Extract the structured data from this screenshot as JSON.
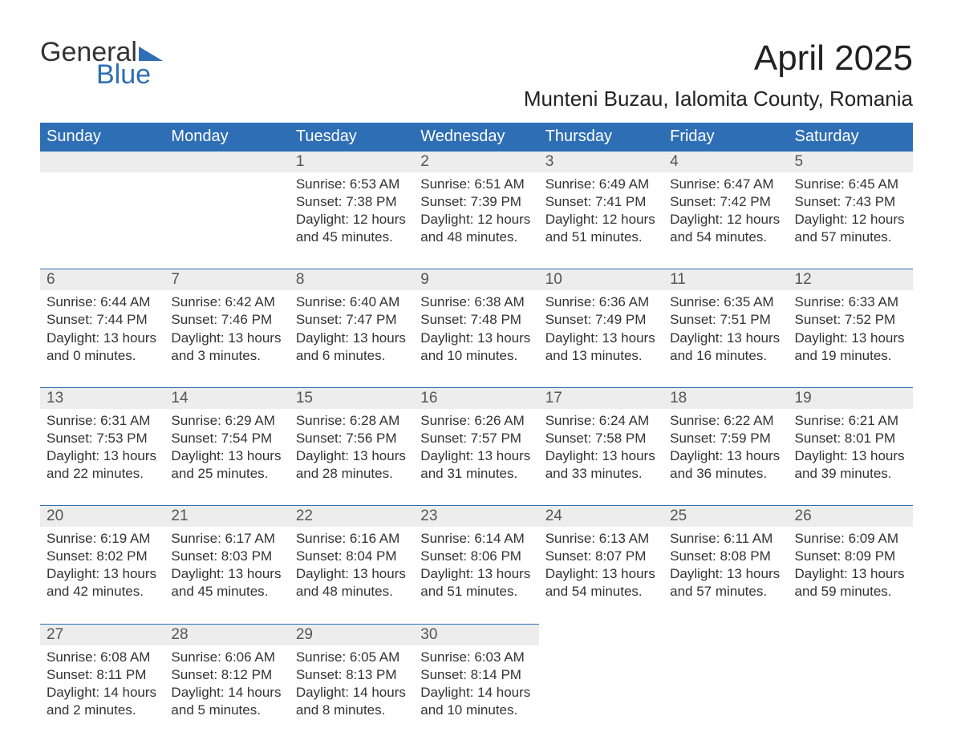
{
  "brand": {
    "word1": "General",
    "word2": "Blue",
    "triangle_color": "#2e6eb5"
  },
  "title": "April 2025",
  "location": "Munteni Buzau, Ialomita County, Romania",
  "colors": {
    "header_bg": "#2e6eb5",
    "header_text": "#ffffff",
    "date_bg": "#ededed",
    "date_border": "#2e6eb5",
    "body_text": "#333333",
    "page_bg": "#ffffff"
  },
  "typography": {
    "title_fontsize": 44,
    "location_fontsize": 26,
    "header_fontsize": 20,
    "date_fontsize": 19,
    "cell_fontsize": 17
  },
  "days": [
    "Sunday",
    "Monday",
    "Tuesday",
    "Wednesday",
    "Thursday",
    "Friday",
    "Saturday"
  ],
  "weeks": [
    [
      null,
      null,
      {
        "d": "1",
        "sr": "Sunrise: 6:53 AM",
        "ss": "Sunset: 7:38 PM",
        "dl1": "Daylight: 12 hours",
        "dl2": "and 45 minutes."
      },
      {
        "d": "2",
        "sr": "Sunrise: 6:51 AM",
        "ss": "Sunset: 7:39 PM",
        "dl1": "Daylight: 12 hours",
        "dl2": "and 48 minutes."
      },
      {
        "d": "3",
        "sr": "Sunrise: 6:49 AM",
        "ss": "Sunset: 7:41 PM",
        "dl1": "Daylight: 12 hours",
        "dl2": "and 51 minutes."
      },
      {
        "d": "4",
        "sr": "Sunrise: 6:47 AM",
        "ss": "Sunset: 7:42 PM",
        "dl1": "Daylight: 12 hours",
        "dl2": "and 54 minutes."
      },
      {
        "d": "5",
        "sr": "Sunrise: 6:45 AM",
        "ss": "Sunset: 7:43 PM",
        "dl1": "Daylight: 12 hours",
        "dl2": "and 57 minutes."
      }
    ],
    [
      {
        "d": "6",
        "sr": "Sunrise: 6:44 AM",
        "ss": "Sunset: 7:44 PM",
        "dl1": "Daylight: 13 hours",
        "dl2": "and 0 minutes."
      },
      {
        "d": "7",
        "sr": "Sunrise: 6:42 AM",
        "ss": "Sunset: 7:46 PM",
        "dl1": "Daylight: 13 hours",
        "dl2": "and 3 minutes."
      },
      {
        "d": "8",
        "sr": "Sunrise: 6:40 AM",
        "ss": "Sunset: 7:47 PM",
        "dl1": "Daylight: 13 hours",
        "dl2": "and 6 minutes."
      },
      {
        "d": "9",
        "sr": "Sunrise: 6:38 AM",
        "ss": "Sunset: 7:48 PM",
        "dl1": "Daylight: 13 hours",
        "dl2": "and 10 minutes."
      },
      {
        "d": "10",
        "sr": "Sunrise: 6:36 AM",
        "ss": "Sunset: 7:49 PM",
        "dl1": "Daylight: 13 hours",
        "dl2": "and 13 minutes."
      },
      {
        "d": "11",
        "sr": "Sunrise: 6:35 AM",
        "ss": "Sunset: 7:51 PM",
        "dl1": "Daylight: 13 hours",
        "dl2": "and 16 minutes."
      },
      {
        "d": "12",
        "sr": "Sunrise: 6:33 AM",
        "ss": "Sunset: 7:52 PM",
        "dl1": "Daylight: 13 hours",
        "dl2": "and 19 minutes."
      }
    ],
    [
      {
        "d": "13",
        "sr": "Sunrise: 6:31 AM",
        "ss": "Sunset: 7:53 PM",
        "dl1": "Daylight: 13 hours",
        "dl2": "and 22 minutes."
      },
      {
        "d": "14",
        "sr": "Sunrise: 6:29 AM",
        "ss": "Sunset: 7:54 PM",
        "dl1": "Daylight: 13 hours",
        "dl2": "and 25 minutes."
      },
      {
        "d": "15",
        "sr": "Sunrise: 6:28 AM",
        "ss": "Sunset: 7:56 PM",
        "dl1": "Daylight: 13 hours",
        "dl2": "and 28 minutes."
      },
      {
        "d": "16",
        "sr": "Sunrise: 6:26 AM",
        "ss": "Sunset: 7:57 PM",
        "dl1": "Daylight: 13 hours",
        "dl2": "and 31 minutes."
      },
      {
        "d": "17",
        "sr": "Sunrise: 6:24 AM",
        "ss": "Sunset: 7:58 PM",
        "dl1": "Daylight: 13 hours",
        "dl2": "and 33 minutes."
      },
      {
        "d": "18",
        "sr": "Sunrise: 6:22 AM",
        "ss": "Sunset: 7:59 PM",
        "dl1": "Daylight: 13 hours",
        "dl2": "and 36 minutes."
      },
      {
        "d": "19",
        "sr": "Sunrise: 6:21 AM",
        "ss": "Sunset: 8:01 PM",
        "dl1": "Daylight: 13 hours",
        "dl2": "and 39 minutes."
      }
    ],
    [
      {
        "d": "20",
        "sr": "Sunrise: 6:19 AM",
        "ss": "Sunset: 8:02 PM",
        "dl1": "Daylight: 13 hours",
        "dl2": "and 42 minutes."
      },
      {
        "d": "21",
        "sr": "Sunrise: 6:17 AM",
        "ss": "Sunset: 8:03 PM",
        "dl1": "Daylight: 13 hours",
        "dl2": "and 45 minutes."
      },
      {
        "d": "22",
        "sr": "Sunrise: 6:16 AM",
        "ss": "Sunset: 8:04 PM",
        "dl1": "Daylight: 13 hours",
        "dl2": "and 48 minutes."
      },
      {
        "d": "23",
        "sr": "Sunrise: 6:14 AM",
        "ss": "Sunset: 8:06 PM",
        "dl1": "Daylight: 13 hours",
        "dl2": "and 51 minutes."
      },
      {
        "d": "24",
        "sr": "Sunrise: 6:13 AM",
        "ss": "Sunset: 8:07 PM",
        "dl1": "Daylight: 13 hours",
        "dl2": "and 54 minutes."
      },
      {
        "d": "25",
        "sr": "Sunrise: 6:11 AM",
        "ss": "Sunset: 8:08 PM",
        "dl1": "Daylight: 13 hours",
        "dl2": "and 57 minutes."
      },
      {
        "d": "26",
        "sr": "Sunrise: 6:09 AM",
        "ss": "Sunset: 8:09 PM",
        "dl1": "Daylight: 13 hours",
        "dl2": "and 59 minutes."
      }
    ],
    [
      {
        "d": "27",
        "sr": "Sunrise: 6:08 AM",
        "ss": "Sunset: 8:11 PM",
        "dl1": "Daylight: 14 hours",
        "dl2": "and 2 minutes."
      },
      {
        "d": "28",
        "sr": "Sunrise: 6:06 AM",
        "ss": "Sunset: 8:12 PM",
        "dl1": "Daylight: 14 hours",
        "dl2": "and 5 minutes."
      },
      {
        "d": "29",
        "sr": "Sunrise: 6:05 AM",
        "ss": "Sunset: 8:13 PM",
        "dl1": "Daylight: 14 hours",
        "dl2": "and 8 minutes."
      },
      {
        "d": "30",
        "sr": "Sunrise: 6:03 AM",
        "ss": "Sunset: 8:14 PM",
        "dl1": "Daylight: 14 hours",
        "dl2": "and 10 minutes."
      },
      null,
      null,
      null
    ]
  ]
}
